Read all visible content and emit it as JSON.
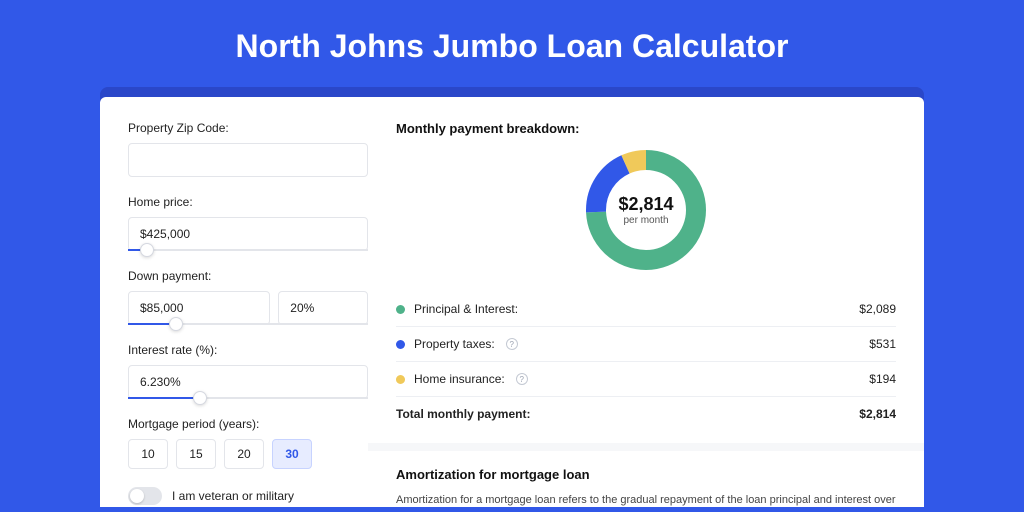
{
  "page": {
    "title": "North Johns Jumbo Loan Calculator",
    "background": "#3158e8",
    "card_shadow": "#2a47c9"
  },
  "form": {
    "zip": {
      "label": "Property Zip Code:",
      "value": ""
    },
    "home_price": {
      "label": "Home price:",
      "value": "$425,000",
      "slider_pct": 8
    },
    "down_payment": {
      "label": "Down payment:",
      "amount": "$85,000",
      "percent": "20%",
      "slider_pct": 20
    },
    "interest": {
      "label": "Interest rate (%):",
      "value": "6.230%",
      "slider_pct": 30
    },
    "period": {
      "label": "Mortgage period (years):",
      "options": [
        "10",
        "15",
        "20",
        "30"
      ],
      "selected_index": 3
    },
    "veteran": {
      "label": "I am veteran or military",
      "on": false
    }
  },
  "breakdown": {
    "title": "Monthly payment breakdown:",
    "center_amount": "$2,814",
    "center_sub": "per month",
    "donut": {
      "slices": [
        {
          "key": "principal_interest",
          "value": 2089,
          "color": "#4fb28a"
        },
        {
          "key": "property_taxes",
          "value": 531,
          "color": "#3158e8"
        },
        {
          "key": "home_insurance",
          "value": 194,
          "color": "#f0c95a"
        }
      ],
      "stroke_width": 20,
      "radius": 50
    },
    "rows": [
      {
        "swatch": "#4fb28a",
        "label": "Principal & Interest:",
        "info": false,
        "value": "$2,089"
      },
      {
        "swatch": "#3158e8",
        "label": "Property taxes:",
        "info": true,
        "value": "$531"
      },
      {
        "swatch": "#f0c95a",
        "label": "Home insurance:",
        "info": true,
        "value": "$194"
      }
    ],
    "total": {
      "label": "Total monthly payment:",
      "value": "$2,814"
    }
  },
  "amortization": {
    "title": "Amortization for mortgage loan",
    "text": "Amortization for a mortgage loan refers to the gradual repayment of the loan principal and interest over a specified"
  }
}
